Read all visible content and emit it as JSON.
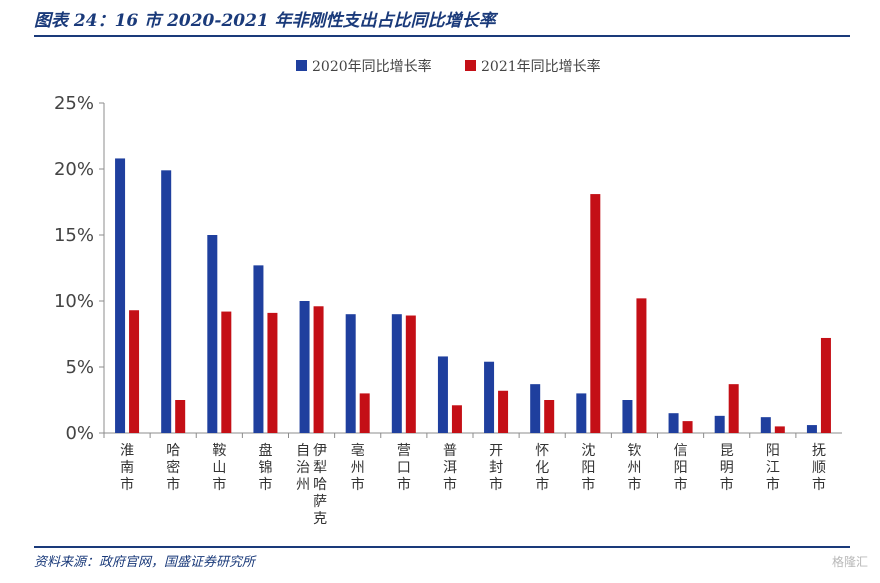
{
  "title": "图表 24：16 市 2020-2021 年非刚性支出占比同比增长率",
  "source": "资料来源：政府官网，国盛证券研究所",
  "watermark": "格隆汇",
  "colors": {
    "series_2020": "#1f3f9e",
    "series_2021": "#c40f16",
    "title": "#1a3a7a"
  },
  "chart_data": {
    "type": "bar",
    "categories": [
      "淮南市",
      "哈密市",
      "鞍山市",
      "盘锦市",
      "伊犁哈萨克自治州",
      "亳州市",
      "营口市",
      "普洱市",
      "开封市",
      "怀化市",
      "沈阳市",
      "钦州市",
      "信阳市",
      "昆明市",
      "阳江市",
      "抚顺市"
    ],
    "category_columns": [
      [
        "淮南市"
      ],
      [
        "哈密市"
      ],
      [
        "鞍山市"
      ],
      [
        "盘锦市"
      ],
      [
        "伊犁哈萨克",
        "自治州"
      ],
      [
        "亳州市"
      ],
      [
        "营口市"
      ],
      [
        "普洱市"
      ],
      [
        "开封市"
      ],
      [
        "怀化市"
      ],
      [
        "沈阳市"
      ],
      [
        "钦州市"
      ],
      [
        "信阳市"
      ],
      [
        "昆明市"
      ],
      [
        "阳江市"
      ],
      [
        "抚顺市"
      ]
    ],
    "series": [
      {
        "name": "2020年同比增长率",
        "values": [
          20.8,
          19.9,
          15.0,
          12.7,
          10.0,
          9.0,
          9.0,
          5.8,
          5.4,
          3.7,
          3.0,
          2.5,
          1.5,
          1.3,
          1.2,
          0.6
        ]
      },
      {
        "name": "2021年同比增长率",
        "values": [
          9.3,
          2.5,
          9.2,
          9.1,
          9.6,
          3.0,
          8.9,
          2.1,
          3.2,
          2.5,
          18.1,
          10.2,
          0.9,
          3.7,
          0.5,
          7.2
        ]
      }
    ],
    "y_ticks": [
      "0%",
      "5%",
      "10%",
      "15%",
      "20%",
      "25%"
    ],
    "ylim": [
      0,
      25
    ],
    "ylabel": "",
    "xlabel": "",
    "legend_position": "top-center",
    "grid": false
  }
}
